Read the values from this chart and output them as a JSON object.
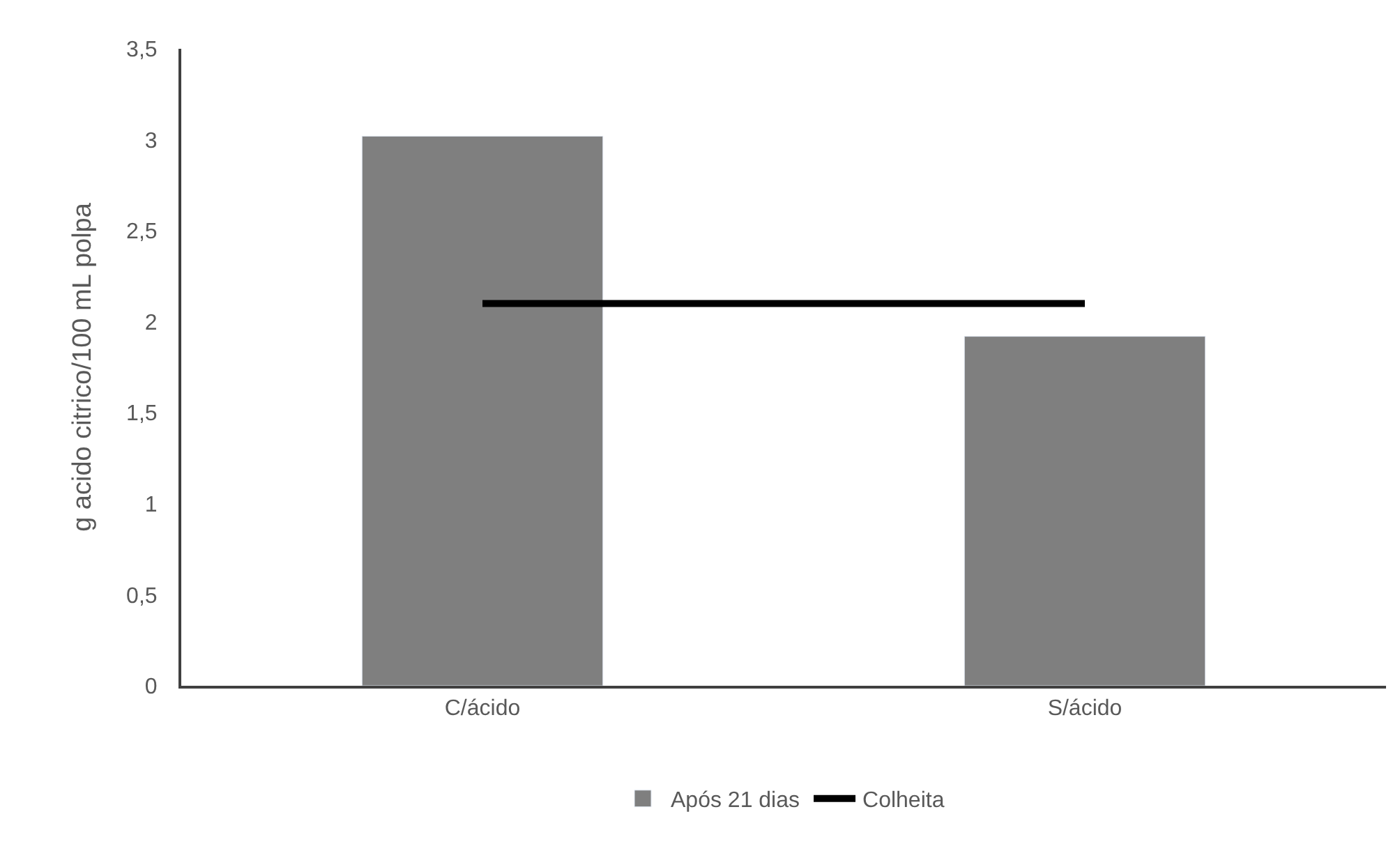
{
  "chart_data": {
    "type": "bar",
    "ylabel": "g acido citrico/100 mL polpa",
    "categories": [
      "C/ácido",
      "S/ácido"
    ],
    "series": [
      {
        "name": "Após 21 dias",
        "color": "#7f7f7f",
        "values": [
          3.02,
          1.92
        ]
      },
      {
        "name": "Colheita",
        "type": "line",
        "color": "#000000",
        "values": [
          2.1,
          2.1
        ]
      }
    ],
    "ylim": [
      0,
      3.5
    ],
    "yticks": [
      {
        "value": 0,
        "label": "0"
      },
      {
        "value": 0.5,
        "label": "0,5"
      },
      {
        "value": 1,
        "label": "1"
      },
      {
        "value": 1.5,
        "label": "1,5"
      },
      {
        "value": 2,
        "label": "2"
      },
      {
        "value": 2.5,
        "label": "2,5"
      },
      {
        "value": 3,
        "label": "3"
      },
      {
        "value": 3.5,
        "label": "3,5"
      }
    ],
    "grid": false,
    "legend": "bottom",
    "marker": "none",
    "line_style": "solid"
  }
}
